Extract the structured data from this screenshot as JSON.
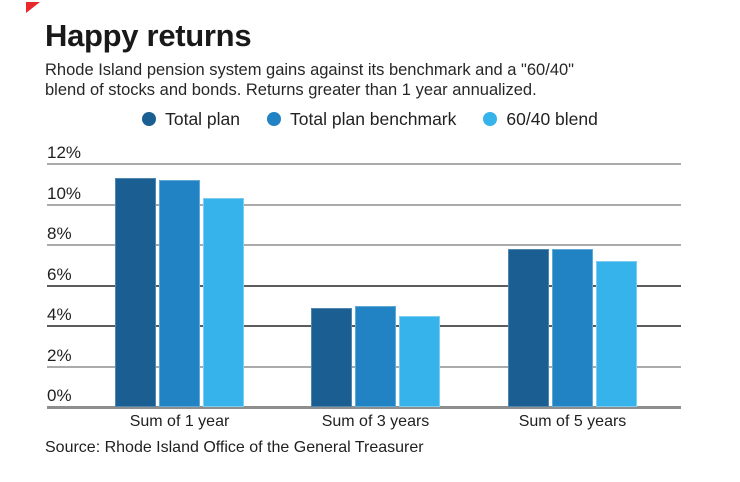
{
  "header": {
    "title": "Happy returns",
    "subtitle_line1": "Rhode Island pension system gains against its benchmark and a \"60/40\"",
    "subtitle_line2": "blend of stocks and bonds. Returns greater than 1 year annualized."
  },
  "accent_flag_color": "#e8282b",
  "chart_data": {
    "type": "bar",
    "categories": [
      "Sum of 1 year",
      "Sum of 3 years",
      "Sum of 5 years"
    ],
    "series": [
      {
        "name": "Total plan",
        "color": "#1b5e91",
        "edge": "#4f87ae",
        "values": [
          11.3,
          4.9,
          7.8
        ]
      },
      {
        "name": "Total plan benchmark",
        "color": "#2182c4",
        "edge": "#5fa9d6",
        "values": [
          11.2,
          5.0,
          7.8
        ]
      },
      {
        "name": "60/40 blend",
        "color": "#36b3ea",
        "edge": "#7ccdf0",
        "values": [
          10.3,
          4.5,
          7.2
        ]
      }
    ],
    "yticks": [
      12,
      10,
      8,
      6,
      4,
      2,
      0
    ],
    "ytick_labels": [
      "12%",
      "10%",
      "8%",
      "6%",
      "4%",
      "2%",
      "0%"
    ],
    "ylim": [
      0,
      12
    ],
    "grid": true,
    "legend_position": "top",
    "gridline_color": "#ababab",
    "gridline_dark_color": "#5c5c5c",
    "baseline_color": "#8e8e8e"
  },
  "source": "Source: Rhode Island Office of the General Treasurer"
}
